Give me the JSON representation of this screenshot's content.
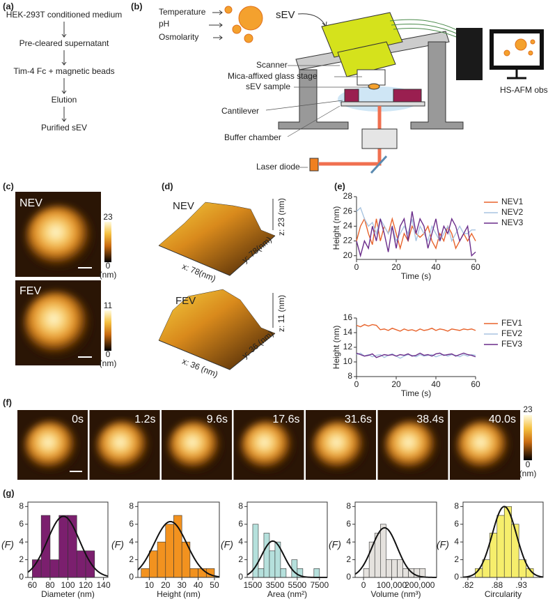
{
  "panel_labels": [
    "(a)",
    "(b)",
    "(c)",
    "(d)",
    "(e)",
    "(f)",
    "(g)"
  ],
  "flow": [
    "HEK-293T conditioned medium",
    "Pre-cleared supernatant",
    "Tim-4 Fc + magnetic beads",
    "Elution",
    "Purified sEV"
  ],
  "diagram": {
    "conditions": [
      "Temperature",
      "pH",
      "Osmolarity"
    ],
    "sev": "sEV",
    "scanner": "Scanner",
    "stage": "Mica-affixed glass stage",
    "sample": "sEV sample",
    "cantilever": "Cantilever",
    "chamber": "Buffer chamber",
    "laser": "Laser diode",
    "observation": "HS-AFM observation"
  },
  "afm_2d": [
    {
      "name": "NEV",
      "max": 23,
      "min": 0,
      "unit": "(nm)"
    },
    {
      "name": "FEV",
      "max": 11,
      "min": 0,
      "unit": "(nm)"
    }
  ],
  "afm_3d": [
    {
      "name": "NEV",
      "x": "x: 78(nm)",
      "y": "y: 78(nm)",
      "z": "z: 23 (nm)"
    },
    {
      "name": "FEV",
      "x": "x: 36 (nm)",
      "y": "y: 36 (nm)",
      "z": "z: 11 (nm)"
    }
  ],
  "timelapse": {
    "times": [
      "0s",
      "1.2s",
      "9.6s",
      "17.6s",
      "31.6s",
      "38.4s",
      "40.0s"
    ],
    "max": 23,
    "min": 0,
    "unit": "(nm)"
  },
  "chart_data": [
    {
      "type": "line",
      "xlabel": "Time (s)",
      "ylabel": "Height (nm)",
      "xlim": [
        0,
        60
      ],
      "xticks": [
        0,
        20,
        40,
        60
      ],
      "ylim": [
        19.5,
        28
      ],
      "yticks": [
        20,
        22,
        24,
        26,
        28
      ],
      "legend": "right",
      "x": [
        0,
        2,
        4,
        6,
        8,
        10,
        12,
        14,
        16,
        18,
        20,
        22,
        24,
        26,
        28,
        30,
        32,
        34,
        36,
        38,
        40,
        42,
        44,
        46,
        48,
        50,
        52,
        54,
        56,
        58,
        60
      ],
      "series": [
        {
          "name": "NEV1",
          "color": "#e8632b",
          "values": [
            22,
            24,
            25,
            23,
            21.5,
            25,
            22,
            24,
            23,
            25,
            23,
            21,
            23,
            22,
            24,
            23,
            22.5,
            23,
            24,
            22,
            21,
            23,
            22,
            24,
            23,
            21,
            22,
            23,
            22,
            23,
            22
          ]
        },
        {
          "name": "NEV2",
          "color": "#a8c4e0",
          "values": [
            26,
            26.5,
            25,
            24,
            24.5,
            23,
            25,
            24,
            23,
            24,
            22,
            23,
            24,
            23,
            25,
            22,
            24,
            23,
            22,
            24,
            23,
            22,
            23,
            24,
            22,
            23,
            24,
            23,
            23,
            23.5,
            23.5
          ]
        },
        {
          "name": "NEV3",
          "color": "#6a2c8a",
          "values": [
            22,
            20,
            22,
            21,
            24,
            22,
            25,
            23,
            20.5,
            24,
            21,
            24,
            25,
            22,
            26,
            23,
            25,
            24,
            21,
            23,
            25,
            22,
            24,
            23,
            25,
            24,
            22,
            23,
            24,
            20,
            20.5
          ]
        }
      ]
    },
    {
      "type": "line",
      "xlabel": "Time (s)",
      "ylabel": "Height (nm)",
      "xlim": [
        0,
        60
      ],
      "xticks": [
        0,
        20,
        40,
        60
      ],
      "ylim": [
        8,
        16
      ],
      "yticks": [
        8,
        10,
        12,
        14,
        16
      ],
      "legend": "right",
      "x": [
        0,
        2,
        4,
        6,
        8,
        10,
        12,
        14,
        16,
        18,
        20,
        22,
        24,
        26,
        28,
        30,
        32,
        34,
        36,
        38,
        40,
        42,
        44,
        46,
        48,
        50,
        52,
        54,
        56,
        58,
        60
      ],
      "series": [
        {
          "name": "FEV1",
          "color": "#e8632b",
          "values": [
            15,
            14.8,
            15.1,
            14.9,
            15.1,
            15,
            14.4,
            14.5,
            14.3,
            14.6,
            14.4,
            14.2,
            14.5,
            14.3,
            14.4,
            14.2,
            14.5,
            14.3,
            14.4,
            14.6,
            14.3,
            14.5,
            14.4,
            14.2,
            14.5,
            14.4,
            14.3,
            14.5,
            14.4,
            14.5,
            14.3
          ]
        },
        {
          "name": "FEV2",
          "color": "#a8c4e0",
          "values": [
            11,
            11.2,
            10.8,
            11,
            10.7,
            10.9,
            11,
            10.6,
            10.9,
            11.1,
            10.8,
            10.5,
            10.8,
            11,
            10.9,
            10.7,
            11,
            10.8,
            10.9,
            11,
            10.7,
            10.9,
            11,
            10.8,
            11,
            10.9,
            10.7,
            11,
            10.8,
            11,
            10.9
          ]
        },
        {
          "name": "FEV3",
          "color": "#6a2c8a",
          "values": [
            11.2,
            11,
            10.8,
            10.9,
            11.1,
            10.6,
            10.8,
            11,
            10.9,
            11,
            10.8,
            11,
            10.9,
            11.1,
            10.8,
            10.9,
            11.2,
            10.9,
            11,
            10.8,
            11.1,
            11.2,
            10.9,
            11,
            11.1,
            10.8,
            11,
            11.2,
            11,
            10.9,
            10.7
          ]
        }
      ]
    },
    {
      "type": "histogram",
      "xlabel": "Diameter (nm)",
      "ylabel": "(F)",
      "color": "#7b1f6e",
      "xlim": [
        55,
        145
      ],
      "xticks": [
        60,
        80,
        100,
        120,
        140
      ],
      "ylim": [
        0,
        8.5
      ],
      "yticks": [
        0,
        2,
        4,
        6,
        8
      ],
      "bins": [
        60,
        70,
        80,
        90,
        100,
        110,
        120,
        130
      ],
      "counts": [
        2,
        7,
        2,
        7,
        7,
        3,
        3
      ],
      "fit": {
        "mean": 95,
        "sd": 18,
        "peak": 6.9
      }
    },
    {
      "type": "histogram",
      "xlabel": "Height (nm)",
      "ylabel": "(F)",
      "color": "#f2921f",
      "xlim": [
        3,
        53
      ],
      "xticks": [
        10,
        20,
        30,
        40,
        50
      ],
      "ylim": [
        0,
        8.5
      ],
      "yticks": [
        0,
        2,
        4,
        6,
        8
      ],
      "bins": [
        5,
        10,
        15,
        20,
        25,
        30,
        35,
        40,
        45,
        50
      ],
      "counts": [
        1,
        3,
        4,
        6,
        7,
        4,
        1,
        1,
        1
      ],
      "fit": {
        "mean": 23,
        "sd": 10,
        "peak": 6.3
      }
    },
    {
      "type": "histogram",
      "xlabel": "Area (nm²)",
      "ylabel": "(F)",
      "color": "#b5e0dc",
      "xlim": [
        1000,
        8200
      ],
      "xticks": [
        1500,
        3500,
        5500,
        7500
      ],
      "ylim": [
        0,
        8.5
      ],
      "yticks": [
        0,
        2,
        4,
        6,
        8
      ],
      "bins": [
        1500,
        2000,
        2500,
        3000,
        3500,
        4000,
        4500,
        5000,
        5500,
        6000,
        6500,
        7000,
        7500
      ],
      "counts": [
        6,
        1,
        5,
        3,
        4,
        1,
        0,
        2,
        1,
        0,
        0,
        1
      ],
      "fit": {
        "mean": 3300,
        "sd": 1000,
        "peak": 4.1
      }
    },
    {
      "type": "histogram",
      "xlabel": "Volume (nm³)",
      "ylabel": "(F)",
      "color": "#e5e2de",
      "xlim": [
        -30000,
        260000
      ],
      "xticks": [
        0,
        {
          "value": 100000,
          "label": "100,000"
        },
        {
          "value": 200000,
          "label": "200,000"
        }
      ],
      "ylim": [
        0,
        8.5
      ],
      "yticks": [
        0,
        2,
        4,
        6,
        8
      ],
      "bins": [
        0,
        20000,
        40000,
        60000,
        80000,
        100000,
        120000,
        140000,
        160000,
        180000,
        200000,
        220000
      ],
      "counts": [
        1,
        4,
        5,
        6,
        2,
        2,
        2,
        1,
        1,
        1,
        1
      ],
      "fit": {
        "mean": 75000,
        "sd": 45000,
        "peak": 5.6
      }
    },
    {
      "type": "histogram",
      "xlabel": "Circularity",
      "ylabel": "(F)",
      "color": "#f6ee6c",
      "xlim": [
        0.81,
        0.975
      ],
      "xticks": [
        {
          "value": 0.82,
          "label": ".82"
        },
        {
          "value": 0.88,
          "label": ".88"
        },
        {
          "value": 0.93,
          "label": ".93"
        }
      ],
      "ylim": [
        0,
        8.5
      ],
      "yticks": [
        0,
        2,
        4,
        6,
        8
      ],
      "bins": [
        0.835,
        0.85,
        0.865,
        0.88,
        0.895,
        0.91,
        0.925,
        0.94,
        0.955
      ],
      "counts": [
        1,
        2,
        5,
        7,
        8,
        6,
        2,
        1
      ],
      "fit": {
        "mean": 0.895,
        "sd": 0.025,
        "peak": 8
      }
    }
  ]
}
